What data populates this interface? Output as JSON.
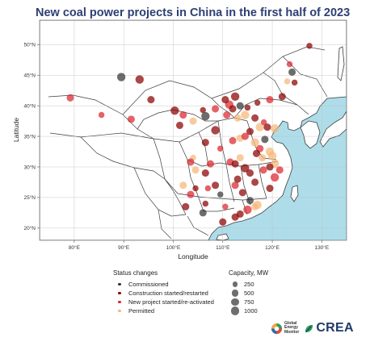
{
  "title": "New coal power projects in China in the first half of 2023",
  "axes": {
    "xlabel": "Longitude",
    "ylabel": "Latitude",
    "lon_range": [
      73,
      135
    ],
    "lat_range": [
      18,
      54
    ],
    "x_ticks": [
      {
        "value": 80,
        "label": "80°E"
      },
      {
        "value": 90,
        "label": "90°E"
      },
      {
        "value": 100,
        "label": "100°E"
      },
      {
        "value": 110,
        "label": "110°E"
      },
      {
        "value": 120,
        "label": "120°E"
      },
      {
        "value": 130,
        "label": "130°E"
      }
    ],
    "y_ticks": [
      {
        "value": 20,
        "label": "20°N"
      },
      {
        "value": 25,
        "label": "25°N"
      },
      {
        "value": 30,
        "label": "30°N"
      },
      {
        "value": 35,
        "label": "35°N"
      },
      {
        "value": 40,
        "label": "40°N"
      },
      {
        "value": 45,
        "label": "45°N"
      },
      {
        "value": 50,
        "label": "50°N"
      }
    ]
  },
  "colors": {
    "sea": "#aedde9",
    "land": "#ffffff",
    "border": "#3c3c3c",
    "commissioned": "#333333",
    "construction": "#8b0000",
    "new_project": "#d9262e",
    "permitted": "#f5b77a"
  },
  "legend": {
    "status_title": "Status changes",
    "status_items": [
      {
        "key": "commissioned",
        "label": "Commissioned"
      },
      {
        "key": "construction",
        "label": "Construction started/restarted"
      },
      {
        "key": "new_project",
        "label": "New project started/re-activated"
      },
      {
        "key": "permitted",
        "label": "Permitted"
      }
    ],
    "capacity_title": "Capacity, MW",
    "capacity_items": [
      {
        "value": 250,
        "label": "250"
      },
      {
        "value": 500,
        "label": "500"
      },
      {
        "value": 750,
        "label": "750"
      },
      {
        "value": 1000,
        "label": "1000"
      }
    ]
  },
  "logos": {
    "gem": [
      "Global",
      "Energy",
      "Monitor"
    ],
    "crea": "CREA"
  },
  "chart_data": {
    "type": "scatter",
    "title": "New coal power projects in China in the first half of 2023",
    "xlabel": "Longitude",
    "ylabel": "Latitude",
    "xlim": [
      73,
      135
    ],
    "ylim": [
      18,
      54
    ],
    "grid": true,
    "points": [
      {
        "lon": 89.5,
        "lat": 44.7,
        "status": "commissioned",
        "mw": 1000
      },
      {
        "lon": 93.2,
        "lat": 44.3,
        "status": "construction",
        "mw": 1000
      },
      {
        "lon": 79.2,
        "lat": 41.3,
        "status": "new_project",
        "mw": 660
      },
      {
        "lon": 85.5,
        "lat": 38.5,
        "status": "new_project",
        "mw": 350
      },
      {
        "lon": 91.5,
        "lat": 37.8,
        "status": "new_project",
        "mw": 660
      },
      {
        "lon": 95.5,
        "lat": 41.0,
        "status": "construction",
        "mw": 660
      },
      {
        "lon": 100.3,
        "lat": 39.2,
        "status": "construction",
        "mw": 1000
      },
      {
        "lon": 102.0,
        "lat": 38.5,
        "status": "new_project",
        "mw": 660
      },
      {
        "lon": 101.3,
        "lat": 36.8,
        "status": "construction",
        "mw": 660
      },
      {
        "lon": 104.0,
        "lat": 37.5,
        "status": "permitted",
        "mw": 660
      },
      {
        "lon": 106.5,
        "lat": 38.3,
        "status": "commissioned",
        "mw": 1000
      },
      {
        "lon": 106.0,
        "lat": 39.3,
        "status": "construction",
        "mw": 350
      },
      {
        "lon": 108.5,
        "lat": 36.0,
        "status": "construction",
        "mw": 1000
      },
      {
        "lon": 108.5,
        "lat": 39.5,
        "status": "new_project",
        "mw": 660
      },
      {
        "lon": 110.5,
        "lat": 41.0,
        "status": "construction",
        "mw": 660
      },
      {
        "lon": 111.3,
        "lat": 40.2,
        "status": "new_project",
        "mw": 1000
      },
      {
        "lon": 110.8,
        "lat": 38.5,
        "status": "new_project",
        "mw": 660
      },
      {
        "lon": 112.5,
        "lat": 41.5,
        "status": "construction",
        "mw": 1000
      },
      {
        "lon": 112.0,
        "lat": 39.5,
        "status": "construction",
        "mw": 660
      },
      {
        "lon": 113.5,
        "lat": 40.0,
        "status": "commissioned",
        "mw": 660
      },
      {
        "lon": 113.0,
        "lat": 38.0,
        "status": "permitted",
        "mw": 660
      },
      {
        "lon": 114.5,
        "lat": 38.5,
        "status": "permitted",
        "mw": 1000
      },
      {
        "lon": 115.0,
        "lat": 39.7,
        "status": "construction",
        "mw": 350
      },
      {
        "lon": 117.0,
        "lat": 40.5,
        "status": "construction",
        "mw": 350
      },
      {
        "lon": 119.5,
        "lat": 41.0,
        "status": "new_project",
        "mw": 660
      },
      {
        "lon": 122.0,
        "lat": 41.5,
        "status": "construction",
        "mw": 660
      },
      {
        "lon": 124.5,
        "lat": 43.8,
        "status": "construction",
        "mw": 350
      },
      {
        "lon": 123.5,
        "lat": 46.8,
        "status": "new_project",
        "mw": 350
      },
      {
        "lon": 124.0,
        "lat": 45.5,
        "status": "commissioned",
        "mw": 660
      },
      {
        "lon": 127.5,
        "lat": 49.8,
        "status": "construction",
        "mw": 350
      },
      {
        "lon": 123.0,
        "lat": 44.0,
        "status": "permitted",
        "mw": 350
      },
      {
        "lon": 116.5,
        "lat": 38.0,
        "status": "construction",
        "mw": 660
      },
      {
        "lon": 117.5,
        "lat": 36.5,
        "status": "permitted",
        "mw": 1000
      },
      {
        "lon": 118.3,
        "lat": 37.3,
        "status": "new_project",
        "mw": 350
      },
      {
        "lon": 119.0,
        "lat": 36.5,
        "status": "construction",
        "mw": 660
      },
      {
        "lon": 120.5,
        "lat": 36.3,
        "status": "permitted",
        "mw": 1000
      },
      {
        "lon": 115.5,
        "lat": 35.8,
        "status": "construction",
        "mw": 660
      },
      {
        "lon": 114.5,
        "lat": 35.0,
        "status": "new_project",
        "mw": 660
      },
      {
        "lon": 113.5,
        "lat": 34.7,
        "status": "permitted",
        "mw": 660
      },
      {
        "lon": 112.0,
        "lat": 34.3,
        "status": "new_project",
        "mw": 660
      },
      {
        "lon": 116.5,
        "lat": 34.0,
        "status": "permitted",
        "mw": 1000
      },
      {
        "lon": 118.5,
        "lat": 34.5,
        "status": "commissioned",
        "mw": 660
      },
      {
        "lon": 117.5,
        "lat": 33.0,
        "status": "new_project",
        "mw": 660
      },
      {
        "lon": 116.8,
        "lat": 32.2,
        "status": "construction",
        "mw": 660
      },
      {
        "lon": 119.5,
        "lat": 32.5,
        "status": "permitted",
        "mw": 1000
      },
      {
        "lon": 120.0,
        "lat": 31.8,
        "status": "permitted",
        "mw": 1000
      },
      {
        "lon": 118.0,
        "lat": 31.5,
        "status": "permitted",
        "mw": 660
      },
      {
        "lon": 120.5,
        "lat": 30.5,
        "status": "permitted",
        "mw": 1000
      },
      {
        "lon": 121.5,
        "lat": 29.5,
        "status": "new_project",
        "mw": 660
      },
      {
        "lon": 119.5,
        "lat": 30.0,
        "status": "construction",
        "mw": 660
      },
      {
        "lon": 118.2,
        "lat": 29.5,
        "status": "new_project",
        "mw": 660
      },
      {
        "lon": 120.5,
        "lat": 28.3,
        "status": "new_project",
        "mw": 1000
      },
      {
        "lon": 119.5,
        "lat": 26.5,
        "status": "construction",
        "mw": 660
      },
      {
        "lon": 116.5,
        "lat": 27.5,
        "status": "construction",
        "mw": 660
      },
      {
        "lon": 114.5,
        "lat": 29.8,
        "status": "construction",
        "mw": 1000
      },
      {
        "lon": 112.5,
        "lat": 30.5,
        "status": "construction",
        "mw": 660
      },
      {
        "lon": 111.5,
        "lat": 30.8,
        "status": "new_project",
        "mw": 660
      },
      {
        "lon": 113.5,
        "lat": 31.5,
        "status": "permitted",
        "mw": 660
      },
      {
        "lon": 115.5,
        "lat": 29.0,
        "status": "construction",
        "mw": 660
      },
      {
        "lon": 113.0,
        "lat": 28.0,
        "status": "construction",
        "mw": 660
      },
      {
        "lon": 112.5,
        "lat": 27.0,
        "status": "new_project",
        "mw": 660
      },
      {
        "lon": 114.0,
        "lat": 25.8,
        "status": "construction",
        "mw": 660
      },
      {
        "lon": 115.5,
        "lat": 24.5,
        "status": "commissioned",
        "mw": 660
      },
      {
        "lon": 117.0,
        "lat": 23.8,
        "status": "permitted",
        "mw": 1000
      },
      {
        "lon": 116.5,
        "lat": 23.5,
        "status": "permitted",
        "mw": 660
      },
      {
        "lon": 115.0,
        "lat": 23.0,
        "status": "new_project",
        "mw": 1000
      },
      {
        "lon": 113.5,
        "lat": 22.3,
        "status": "construction",
        "mw": 660
      },
      {
        "lon": 112.5,
        "lat": 21.8,
        "status": "construction",
        "mw": 660
      },
      {
        "lon": 110.0,
        "lat": 21.0,
        "status": "construction",
        "mw": 660
      },
      {
        "lon": 110.5,
        "lat": 23.5,
        "status": "new_project",
        "mw": 350
      },
      {
        "lon": 109.5,
        "lat": 25.5,
        "status": "commissioned",
        "mw": 350
      },
      {
        "lon": 108.5,
        "lat": 27.0,
        "status": "construction",
        "mw": 660
      },
      {
        "lon": 107.0,
        "lat": 26.5,
        "status": "new_project",
        "mw": 350
      },
      {
        "lon": 106.5,
        "lat": 29.0,
        "status": "construction",
        "mw": 660
      },
      {
        "lon": 107.5,
        "lat": 30.5,
        "status": "new_project",
        "mw": 660
      },
      {
        "lon": 104.5,
        "lat": 29.5,
        "status": "permitted",
        "mw": 660
      },
      {
        "lon": 103.5,
        "lat": 30.8,
        "status": "new_project",
        "mw": 660
      },
      {
        "lon": 104.0,
        "lat": 31.5,
        "status": "permitted",
        "mw": 350
      },
      {
        "lon": 104.5,
        "lat": 26.5,
        "status": "construction",
        "mw": 350
      },
      {
        "lon": 103.5,
        "lat": 25.5,
        "status": "new_project",
        "mw": 660
      },
      {
        "lon": 102.5,
        "lat": 23.5,
        "status": "construction",
        "mw": 660
      },
      {
        "lon": 102.0,
        "lat": 27.0,
        "status": "permitted",
        "mw": 660
      },
      {
        "lon": 106.0,
        "lat": 22.5,
        "status": "commissioned",
        "mw": 660
      },
      {
        "lon": 106.5,
        "lat": 24.0,
        "status": "construction",
        "mw": 350
      },
      {
        "lon": 109.5,
        "lat": 33.0,
        "status": "new_project",
        "mw": 350
      },
      {
        "lon": 106.5,
        "lat": 34.0,
        "status": "construction",
        "mw": 660
      }
    ]
  }
}
